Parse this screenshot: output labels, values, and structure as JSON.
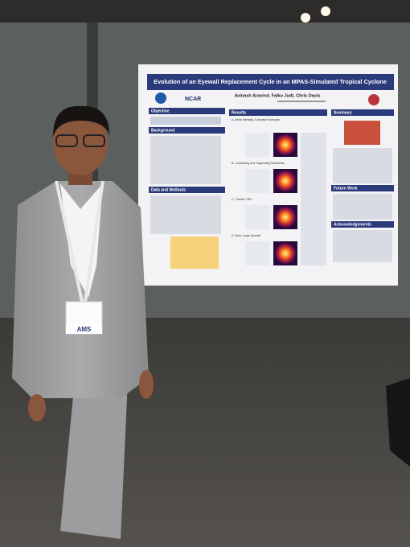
{
  "poster": {
    "title": "Evolution of an Eyewall Replacement Cycle in an MPAS-Simulated Tropical Cyclone",
    "authors": "Avinash Aravind, Falko Judt, Chris Davis",
    "logo": "NCAR",
    "sections": [
      "Objective",
      "Background",
      "Data and Methods",
      "Results",
      "Summary",
      "Future Work",
      "Acknowledgements"
    ],
    "panels": [
      "A. Initial Intensity, Compact Hurricane",
      "B. Coalescing and Organizing Rainbands",
      "C. \"Partial\" ERC",
      "D. New, Large Eyewall"
    ]
  },
  "badge": {
    "org": "AMS"
  }
}
